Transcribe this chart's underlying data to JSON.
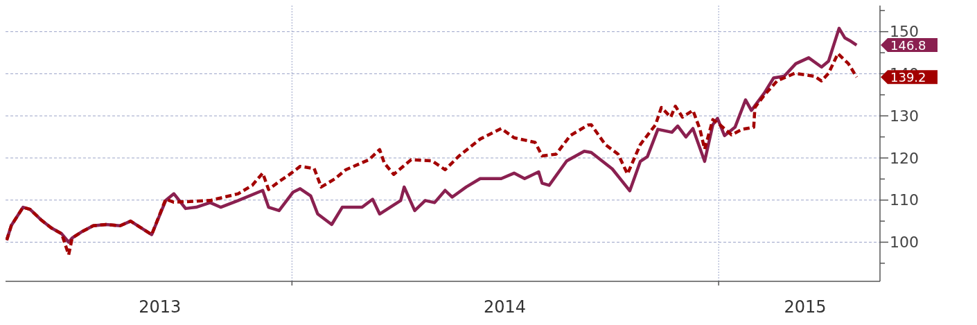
{
  "chart_data": {
    "type": "line",
    "xlim": [
      "2013-05-01",
      "2015-05-19"
    ],
    "xticks": [
      {
        "value": "2013-09-10",
        "label": "2013"
      },
      {
        "value": "2014-01-01",
        "label": null
      },
      {
        "value": "2014-07-02",
        "label": "2014"
      },
      {
        "value": "2015-01-01",
        "label": null
      },
      {
        "value": "2015-03-16",
        "label": "2015"
      }
    ],
    "ylim": [
      90.7,
      156.2
    ],
    "yticks": [
      {
        "value": 95,
        "label": null
      },
      100,
      {
        "value": 105,
        "label": null
      },
      110,
      {
        "value": 115,
        "label": null
      },
      120,
      {
        "value": 125,
        "label": null
      },
      130,
      {
        "value": 135,
        "label": null
      },
      140,
      {
        "value": 145,
        "label": null
      },
      150,
      {
        "value": 155,
        "label": null
      }
    ],
    "grid": true,
    "series": [
      {
        "color": "#8a2050",
        "line_style": "solid",
        "x": [
          "2013-05-02",
          "2013-05-06",
          "2013-05-16",
          "2013-05-22",
          "2013-05-31",
          "2013-06-09",
          "2013-06-18",
          "2013-06-24",
          "2013-06-27",
          "2013-07-06",
          "2013-07-15",
          "2013-07-26",
          "2013-08-07",
          "2013-08-16",
          "2013-08-25",
          "2013-09-03",
          "2013-09-15",
          "2013-09-22",
          "2013-10-02",
          "2013-10-11",
          "2013-10-23",
          "2013-11-01",
          "2013-11-16",
          "2013-12-07",
          "2013-12-12",
          "2013-12-21",
          "2014-01-02",
          "2014-01-08",
          "2014-01-17",
          "2014-01-23",
          "2014-02-04",
          "2014-02-13",
          "2014-03-02",
          "2014-03-11",
          "2014-03-17",
          "2014-04-04",
          "2014-04-07",
          "2014-04-16",
          "2014-04-25",
          "2014-05-03",
          "2014-05-12",
          "2014-05-18",
          "2014-05-30",
          "2014-06-11",
          "2014-06-29",
          "2014-07-10",
          "2014-07-19",
          "2014-07-31",
          "2014-08-03",
          "2014-08-09",
          "2014-08-24",
          "2014-09-08",
          "2014-09-14",
          "2014-10-02",
          "2014-10-17",
          "2014-10-26",
          "2014-11-01",
          "2014-11-10",
          "2014-11-22",
          "2014-11-27",
          "2014-12-04",
          "2014-12-10",
          "2014-12-20",
          "2014-12-27",
          "2014-12-31",
          "2015-01-06",
          "2015-01-15",
          "2015-01-24",
          "2015-01-29",
          "2015-02-09",
          "2015-02-17",
          "2015-02-26",
          "2015-03-08",
          "2015-03-19",
          "2015-03-30",
          "2015-04-05",
          "2015-04-14",
          "2015-04-19",
          "2015-04-23",
          "2015-04-29"
        ],
        "values": [
          100.5,
          104,
          108.3,
          107.8,
          105.4,
          103.4,
          102,
          100,
          101,
          102.6,
          103.9,
          104.2,
          103.9,
          105,
          103.4,
          101.8,
          109.9,
          111.5,
          108,
          108.3,
          109.4,
          108.3,
          109.9,
          112.3,
          108.3,
          107.5,
          111.9,
          112.7,
          111,
          106.7,
          104.2,
          108.3,
          108.3,
          110.2,
          106.7,
          109.9,
          113.1,
          107.5,
          109.9,
          109.4,
          112.3,
          110.7,
          113.1,
          115.1,
          115.1,
          116.4,
          115.1,
          116.7,
          114,
          113.5,
          119.3,
          121.6,
          121.3,
          117.4,
          112.2,
          119.2,
          120.3,
          126.8,
          126.1,
          127.6,
          125,
          127,
          119.2,
          127.9,
          129.4,
          125.3,
          127.3,
          133.8,
          131.3,
          135.4,
          139,
          139.4,
          142.4,
          143.8,
          141.6,
          143,
          150.8,
          148.5,
          147.9,
          146.8
        ]
      },
      {
        "color": "#a30000",
        "line_style": "dashed",
        "x": [
          "2013-05-02",
          "2013-05-06",
          "2013-05-16",
          "2013-05-22",
          "2013-05-31",
          "2013-06-09",
          "2013-06-18",
          "2013-06-24",
          "2013-06-27",
          "2013-07-06",
          "2013-07-15",
          "2013-07-26",
          "2013-08-07",
          "2013-08-16",
          "2013-08-25",
          "2013-09-03",
          "2013-09-15",
          "2013-09-22",
          "2013-10-23",
          "2013-11-16",
          "2013-11-28",
          "2013-12-07",
          "2013-12-12",
          "2013-12-21",
          "2013-12-30",
          "2014-01-08",
          "2014-01-20",
          "2014-01-26",
          "2014-02-07",
          "2014-02-16",
          "2014-03-08",
          "2014-03-17",
          "2014-03-21",
          "2014-03-29",
          "2014-04-13",
          "2014-05-01",
          "2014-05-12",
          "2014-05-24",
          "2014-06-11",
          "2014-06-29",
          "2014-07-10",
          "2014-07-28",
          "2014-08-03",
          "2014-08-15",
          "2014-08-27",
          "2014-09-11",
          "2014-09-14",
          "2014-09-26",
          "2014-10-07",
          "2014-10-15",
          "2014-10-26",
          "2014-11-08",
          "2014-11-13",
          "2014-11-21",
          "2014-11-25",
          "2014-12-01",
          "2014-12-10",
          "2014-12-16",
          "2014-12-20",
          "2014-12-27",
          "2015-01-02",
          "2015-01-12",
          "2015-01-21",
          "2015-01-31",
          "2015-02-01",
          "2015-02-09",
          "2015-02-20",
          "2015-03-07",
          "2015-03-24",
          "2015-03-30",
          "2015-04-05",
          "2015-04-13",
          "2015-04-22",
          "2015-04-29"
        ],
        "values": [
          100.5,
          104,
          108.3,
          107.8,
          105.4,
          103.4,
          102,
          97,
          101,
          102.6,
          103.9,
          104.2,
          103.9,
          105,
          103.4,
          101.8,
          110.2,
          109.5,
          109.9,
          111.5,
          113.5,
          116.4,
          112.5,
          114.4,
          116.1,
          118,
          117.5,
          113.1,
          115.1,
          117.2,
          119.6,
          122,
          118.8,
          116.1,
          119.6,
          119.3,
          117.2,
          120.5,
          124.5,
          127,
          124.8,
          123.7,
          120.5,
          120.9,
          125.3,
          127.8,
          127.9,
          123.2,
          120.9,
          116.2,
          123.2,
          127.9,
          132,
          129.7,
          132.3,
          129.7,
          131.3,
          126.8,
          122.1,
          129.1,
          127.9,
          125.5,
          126.8,
          127.3,
          132,
          134.9,
          138.3,
          140.1,
          139.4,
          138.3,
          140.1,
          144.8,
          142.4,
          139.2
        ]
      }
    ],
    "annotations": [
      "146.8",
      "139.2"
    ]
  }
}
